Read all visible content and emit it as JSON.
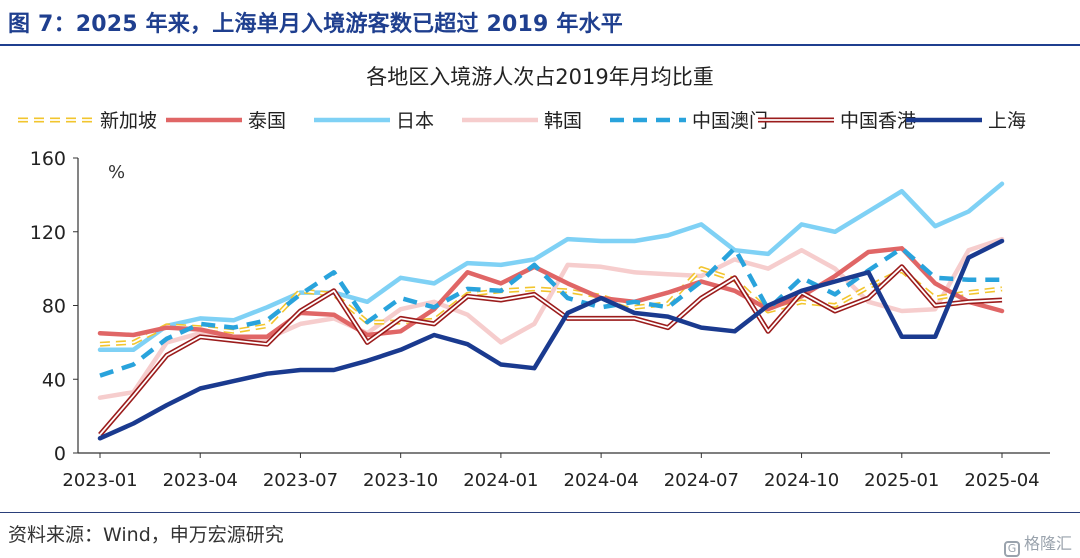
{
  "figure_title": "图 7：2025 年来，上海单月入境游客数已超过 2019 年水平",
  "source": "资料来源：Wind，申万宏源研究",
  "watermark": "格隆汇",
  "chart_data": {
    "type": "line",
    "title": "各地区入境游人次占2019年月均比重",
    "unit_label": "%",
    "ylim": [
      0,
      160
    ],
    "yticks": [
      0,
      40,
      80,
      120,
      160
    ],
    "x_tick_labels": [
      "2023-01",
      "2023-04",
      "2023-07",
      "2023-10",
      "2024-01",
      "2024-04",
      "2024-07",
      "2024-10",
      "2025-01",
      "2025-04"
    ],
    "x": [
      "2023-01",
      "2023-02",
      "2023-03",
      "2023-04",
      "2023-05",
      "2023-06",
      "2023-07",
      "2023-08",
      "2023-09",
      "2023-10",
      "2023-11",
      "2023-12",
      "2024-01",
      "2024-02",
      "2024-03",
      "2024-04",
      "2024-05",
      "2024-06",
      "2024-07",
      "2024-08",
      "2024-09",
      "2024-10",
      "2024-11",
      "2024-12",
      "2025-01",
      "2025-02",
      "2025-03",
      "2025-04"
    ],
    "legend_position": "top",
    "grid": false,
    "series": [
      {
        "name": "新加坡",
        "color": "#f2c52e",
        "style": "dashed-double",
        "values": [
          59,
          60,
          69,
          68,
          66,
          69,
          88,
          86,
          71,
          71,
          72,
          86,
          88,
          89,
          88,
          85,
          79,
          81,
          100,
          94,
          77,
          82,
          80,
          90,
          99,
          84,
          87,
          89
        ]
      },
      {
        "name": "泰国",
        "color": "#e06666",
        "style": "solid-thick",
        "values": [
          65,
          64,
          68,
          67,
          63,
          63,
          76,
          75,
          64,
          66,
          78,
          98,
          92,
          101,
          92,
          84,
          82,
          87,
          93,
          88,
          78,
          85,
          96,
          109,
          111,
          92,
          82,
          77
        ]
      },
      {
        "name": "日本",
        "color": "#7fd1f5",
        "style": "solid-thick",
        "values": [
          56,
          56,
          69,
          73,
          72,
          79,
          87,
          87,
          82,
          95,
          92,
          103,
          102,
          105,
          116,
          115,
          115,
          118,
          124,
          110,
          108,
          124,
          120,
          131,
          142,
          123,
          131,
          146
        ]
      },
      {
        "name": "韩国",
        "color": "#f6cdcd",
        "style": "solid-thick",
        "values": [
          30,
          33,
          60,
          65,
          62,
          62,
          70,
          73,
          65,
          78,
          82,
          75,
          60,
          70,
          102,
          101,
          98,
          97,
          96,
          105,
          100,
          110,
          100,
          82,
          77,
          78,
          110,
          116
        ]
      },
      {
        "name": "中国澳门",
        "color": "#29a3dc",
        "style": "dashed",
        "values": [
          42,
          48,
          62,
          70,
          68,
          72,
          86,
          98,
          71,
          84,
          79,
          89,
          88,
          102,
          84,
          79,
          82,
          79,
          93,
          111,
          78,
          95,
          86,
          99,
          111,
          95,
          94,
          94
        ]
      },
      {
        "name": "中国香港",
        "color": "#9b1c1c",
        "style": "double-line",
        "values": [
          10,
          31,
          53,
          63,
          61,
          59,
          77,
          88,
          60,
          73,
          70,
          85,
          83,
          86,
          73,
          73,
          73,
          68,
          84,
          95,
          66,
          87,
          77,
          84,
          101,
          80,
          82,
          83
        ]
      },
      {
        "name": "上海",
        "color": "#1a3a8f",
        "style": "solid-thick",
        "values": [
          8,
          16,
          26,
          35,
          39,
          43,
          45,
          45,
          50,
          56,
          64,
          59,
          48,
          46,
          76,
          84,
          76,
          74,
          68,
          66,
          80,
          88,
          93,
          98,
          63,
          63,
          106,
          115
        ]
      }
    ]
  }
}
